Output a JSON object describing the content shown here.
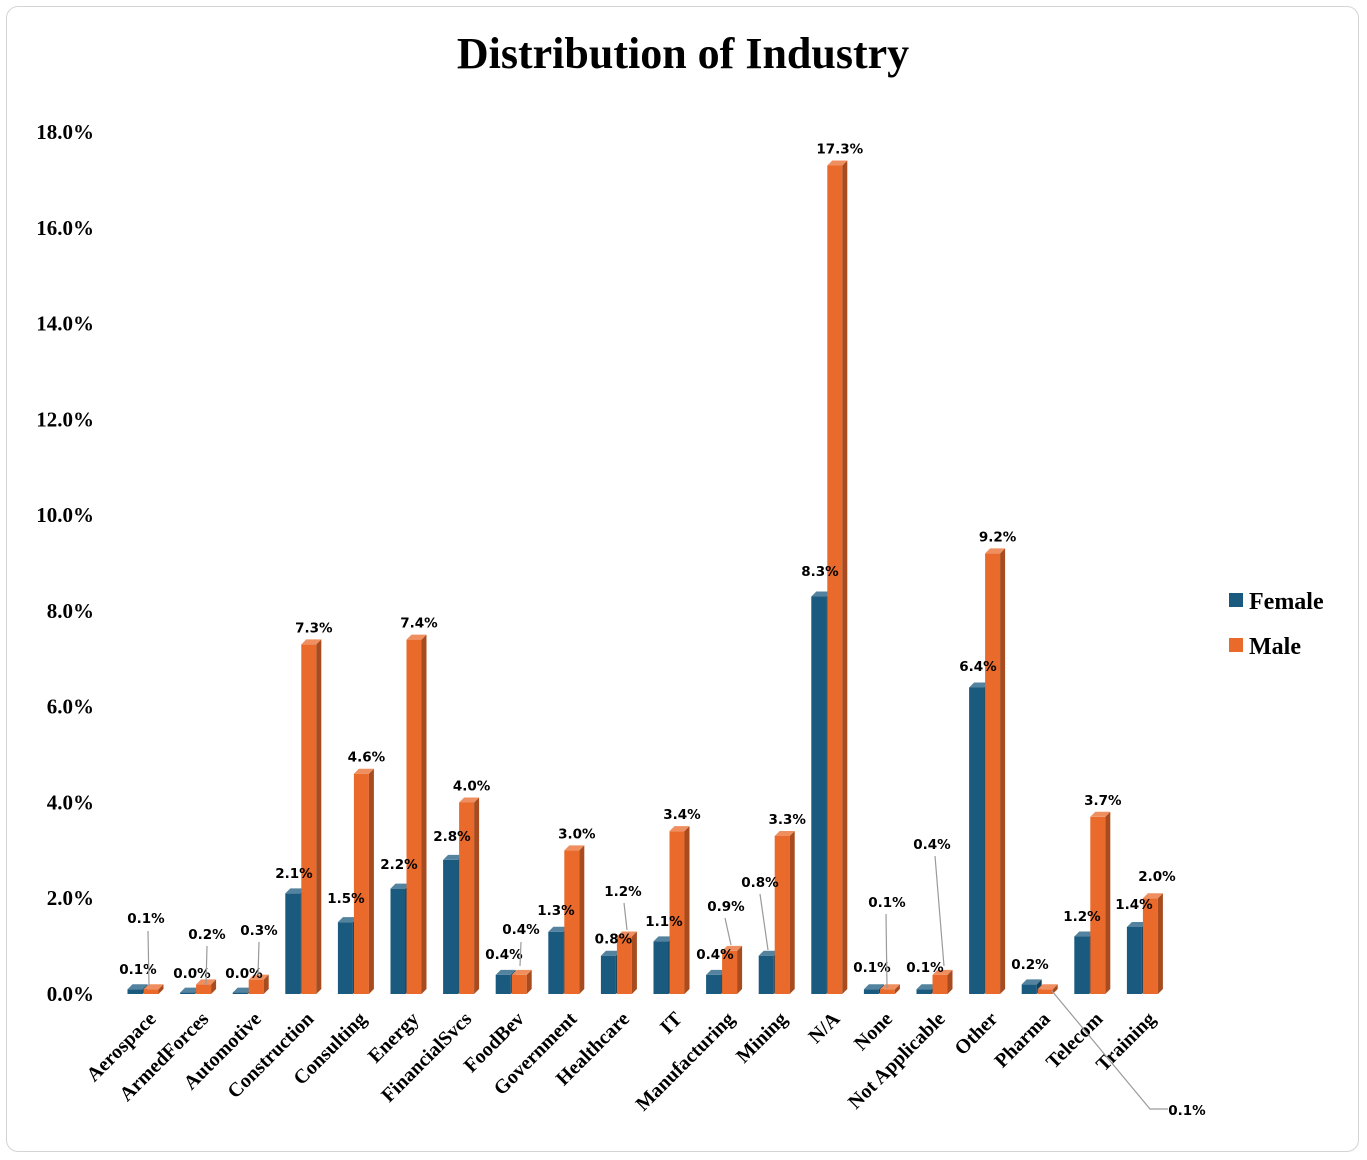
{
  "chart_data": {
    "type": "bar",
    "title": "Distribution of Industry",
    "xlabel": "",
    "ylabel": "",
    "ylim": [
      0,
      18
    ],
    "y_ticks": [
      "0.0%",
      "2.0%",
      "4.0%",
      "6.0%",
      "8.0%",
      "10.0%",
      "12.0%",
      "14.0%",
      "16.0%",
      "18.0%"
    ],
    "categories": [
      "Aerospace",
      "ArmedForces",
      "Automotive",
      "Construction",
      "Consulting",
      "Energy",
      "FinancialSvcs",
      "FoodBev",
      "Government",
      "Healthcare",
      "IT",
      "Manufacturing",
      "Mining",
      "N/A",
      "None",
      "Not Applicable",
      "Other",
      "Pharma",
      "Telecom",
      "Training"
    ],
    "series": [
      {
        "name": "Female",
        "color": "#1a5a7e",
        "values": [
          0.1,
          0.03,
          0.03,
          2.1,
          1.5,
          2.2,
          2.8,
          0.4,
          1.3,
          0.8,
          1.1,
          0.4,
          0.8,
          8.3,
          0.1,
          0.1,
          6.4,
          0.2,
          1.2,
          1.4
        ],
        "labels": [
          "0.1%",
          "0.0%",
          "0.0%",
          "2.1%",
          "1.5%",
          "2.2%",
          "2.8%",
          "0.4%",
          "1.3%",
          "0.8%",
          "1.1%",
          "0.4%",
          "0.8%",
          "8.3%",
          "0.1%",
          "0.1%",
          "6.4%",
          "0.2%",
          "1.2%",
          "1.4%"
        ]
      },
      {
        "name": "Male",
        "color": "#ea6a2b",
        "values": [
          0.1,
          0.2,
          0.3,
          7.3,
          4.6,
          7.4,
          4.0,
          0.4,
          3.0,
          1.2,
          3.4,
          0.9,
          3.3,
          17.3,
          0.1,
          0.4,
          9.2,
          0.1,
          3.7,
          2.0
        ],
        "labels": [
          "0.1%",
          "0.2%",
          "0.3%",
          "7.3%",
          "4.6%",
          "7.4%",
          "4.0%",
          "0.4%",
          "3.0%",
          "1.2%",
          "3.4%",
          "0.9%",
          "3.3%",
          "17.3%",
          "0.1%",
          "0.4%",
          "9.2%",
          "0.1%",
          "3.7%",
          "2.0%"
        ]
      }
    ],
    "legend": "right",
    "grid": false
  }
}
